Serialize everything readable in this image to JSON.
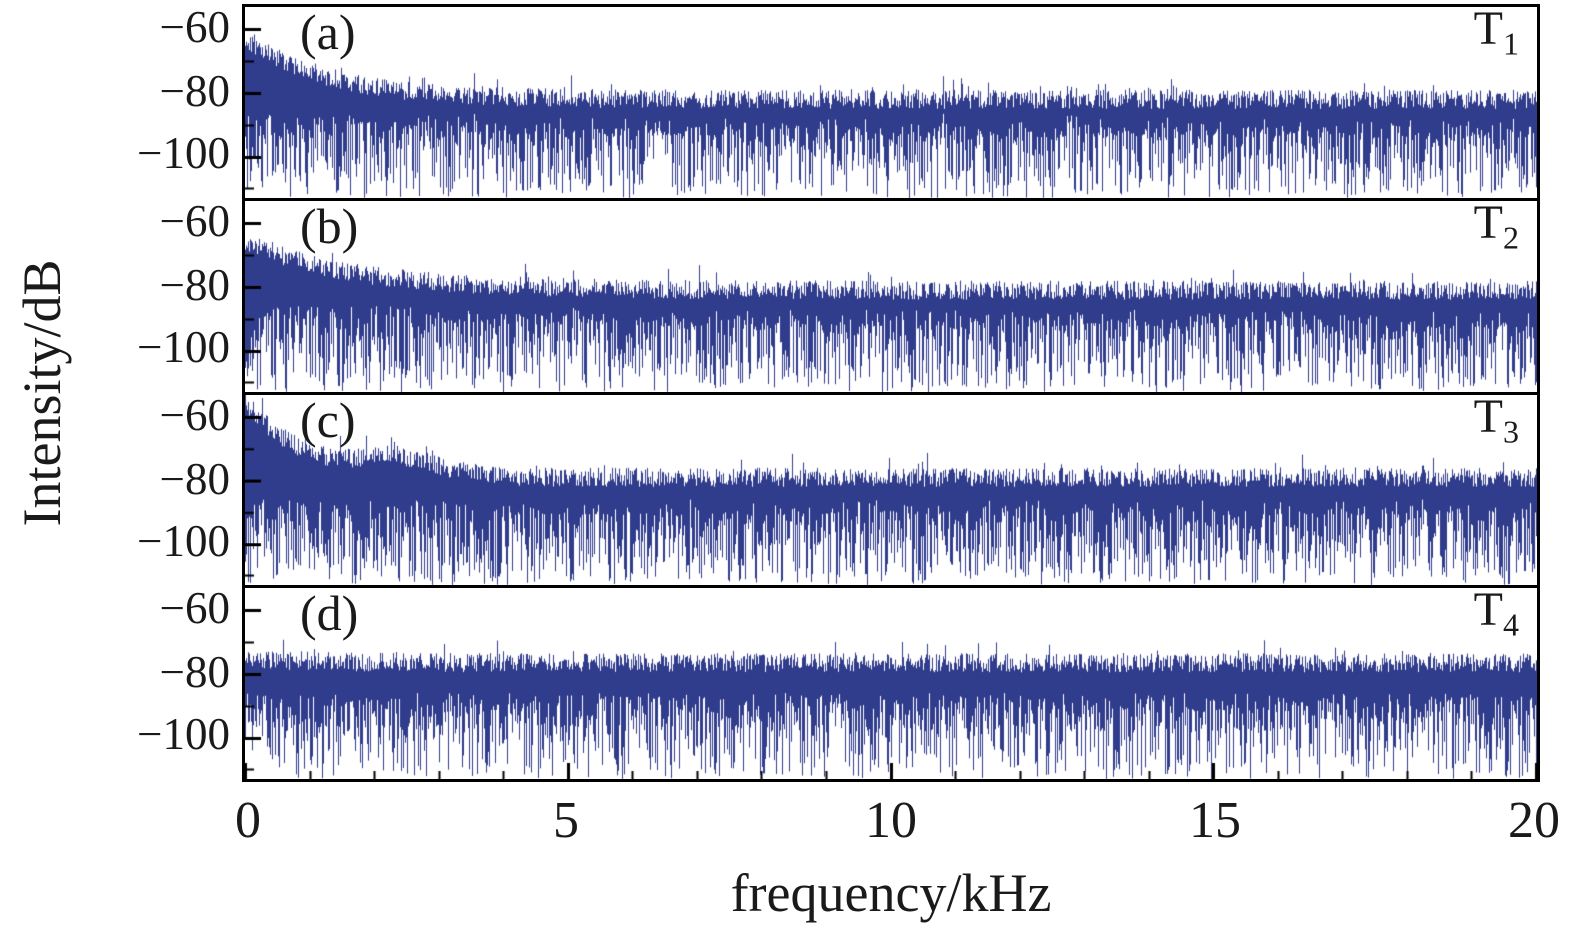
{
  "chart_data": {
    "type": "line",
    "title": "",
    "xlabel": "frequency/kHz",
    "ylabel": "Intensity/dB",
    "xlim_khz": [
      0,
      20
    ],
    "ylim_db": [
      -113,
      -53
    ],
    "xticks": [
      0,
      5,
      10,
      15,
      20
    ],
    "xtick_labels": [
      "0",
      "5",
      "10",
      "15",
      "20"
    ],
    "yticks": [
      -60,
      -80,
      -100
    ],
    "ytick_labels": [
      "−60",
      "−80",
      "−100"
    ],
    "yticks_minor": [
      -70,
      -90,
      -110
    ],
    "grid": false,
    "legend_position": "none",
    "trace_color": "#303c8c",
    "axis_color": "#000000",
    "signal": "broadband noise-like intensity spectra, 0-20 kHz, four stacked panels",
    "panels": [
      {
        "panel_label": "(a)",
        "trace_prefix": "T",
        "trace_subscript": "1",
        "envelope": {
          "peak_db": -63,
          "flat_db": -82,
          "decay_khz": 1.3
        },
        "noise_top_jitter_db": 3,
        "noise_floor_range_db": [
          -86,
          -113
        ],
        "deep_spike_prob": 0.45,
        "seed": 101
      },
      {
        "panel_label": "(b)",
        "trace_prefix": "T",
        "trace_subscript": "2",
        "envelope": {
          "peak_db": -66,
          "flat_db": -81,
          "decay_khz": 1.7
        },
        "noise_top_jitter_db": 3,
        "noise_floor_range_db": [
          -86,
          -113
        ],
        "deep_spike_prob": 0.5,
        "seed": 202
      },
      {
        "panel_label": "(c)",
        "trace_prefix": "T",
        "trace_subscript": "3",
        "envelope": {
          "peak_db": -55,
          "flat_db": -79,
          "decay_khz": 0.9,
          "bump": {
            "center_khz": 2.4,
            "amp_db": 5,
            "width_khz": 0.6
          }
        },
        "noise_top_jitter_db": 3,
        "noise_floor_range_db": [
          -86,
          -113
        ],
        "deep_spike_prob": 0.55,
        "seed": 303
      },
      {
        "panel_label": "(d)",
        "trace_prefix": "T",
        "trace_subscript": "4",
        "envelope": {
          "peak_db": -75,
          "flat_db": -76.5,
          "decay_khz": 1.0
        },
        "noise_top_jitter_db": 3,
        "noise_floor_range_db": [
          -86,
          -113
        ],
        "deep_spike_prob": 0.4,
        "seed": 404
      }
    ]
  }
}
